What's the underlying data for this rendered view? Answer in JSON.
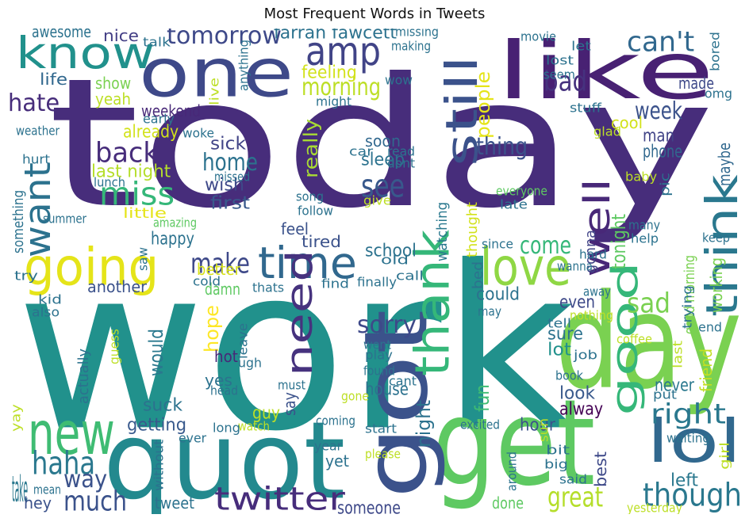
{
  "chart_data": {
    "type": "wordcloud",
    "title": "Most Frequent Words in Tweets",
    "colormap": "viridis",
    "words": [
      {
        "text": "today",
        "color": "#472d7b",
        "rot": false
      },
      {
        "text": "work",
        "color": "#21918c",
        "rot": false
      },
      {
        "text": "get",
        "color": "#5ec962",
        "rot": false
      },
      {
        "text": "got",
        "color": "#3b528b",
        "rot": true
      },
      {
        "text": "like",
        "color": "#482173",
        "rot": false
      },
      {
        "text": "day",
        "color": "#7ad151",
        "rot": false
      },
      {
        "text": "quot",
        "color": "#23898e",
        "rot": false
      },
      {
        "text": "one",
        "color": "#3e4989",
        "rot": false
      },
      {
        "text": "good",
        "color": "#35b779",
        "rot": true
      },
      {
        "text": "going",
        "color": "#e5e419",
        "rot": false
      },
      {
        "text": "know",
        "color": "#21918c",
        "rot": false
      },
      {
        "text": "think",
        "color": "#2a788e",
        "rot": true
      },
      {
        "text": "love",
        "color": "#8fd744",
        "rot": false
      },
      {
        "text": "thank",
        "color": "#35b779",
        "rot": true
      },
      {
        "text": "new",
        "color": "#3fbc73",
        "rot": false
      },
      {
        "text": "amp",
        "color": "#414487",
        "rot": false
      },
      {
        "text": "lol",
        "color": "#31688e",
        "rot": false
      },
      {
        "text": "well",
        "color": "#482878",
        "rot": true
      },
      {
        "text": "time",
        "color": "#31688e",
        "rot": false
      },
      {
        "text": "still",
        "color": "#3b528b",
        "rot": true
      },
      {
        "text": "want",
        "color": "#2c728e",
        "rot": true
      },
      {
        "text": "need",
        "color": "#46327e",
        "rot": true
      },
      {
        "text": "twitter",
        "color": "#472d7b",
        "rot": false
      },
      {
        "text": "miss",
        "color": "#35b779",
        "rot": false
      },
      {
        "text": "though",
        "color": "#2a788e",
        "rot": false
      },
      {
        "text": "haha",
        "color": "#2a788e",
        "rot": false
      },
      {
        "text": "see",
        "color": "#38598c",
        "rot": false
      },
      {
        "text": "much",
        "color": "#3b528b",
        "rot": false
      },
      {
        "text": "right",
        "color": "#2a788e",
        "rot": false
      },
      {
        "text": "great",
        "color": "#b5de2b",
        "rot": false
      },
      {
        "text": "back",
        "color": "#472d7b",
        "rot": false
      },
      {
        "text": "bad",
        "color": "#46327e",
        "rot": false
      },
      {
        "text": "can't",
        "color": "#31688e",
        "rot": false
      },
      {
        "text": "make",
        "color": "#3e4989",
        "rot": false
      },
      {
        "text": "way",
        "color": "#3b528b",
        "rot": false
      },
      {
        "text": "home",
        "color": "#2c728e",
        "rot": false
      },
      {
        "text": "morning",
        "color": "#bddf26",
        "rot": false
      },
      {
        "text": "tomorrow",
        "color": "#3e4989",
        "rot": false
      },
      {
        "text": "sad",
        "color": "#7ad151",
        "rot": false
      },
      {
        "text": "come",
        "color": "#35b779",
        "rot": false
      },
      {
        "text": "people",
        "color": "#e5e419",
        "rot": true
      },
      {
        "text": "week",
        "color": "#3b528b",
        "rot": false
      },
      {
        "text": "hate",
        "color": "#472d7b",
        "rot": false
      },
      {
        "text": "thing",
        "color": "#3b528b",
        "rot": false
      },
      {
        "text": "really",
        "color": "#a8db34",
        "rot": true
      },
      {
        "text": "tonight",
        "color": "#5ec962",
        "rot": true
      },
      {
        "text": "sorry",
        "color": "#3e4989",
        "rot": false
      },
      {
        "text": "hope",
        "color": "#fde725",
        "rot": true
      },
      {
        "text": "would",
        "color": "#2a788e",
        "rot": true
      },
      {
        "text": "night",
        "color": "#2c728e",
        "rot": true
      },
      {
        "text": "fun",
        "color": "#3fbc73",
        "rot": true
      },
      {
        "text": "sleep",
        "color": "#2c728e",
        "rot": false
      },
      {
        "text": "feeling",
        "color": "#d2e21b",
        "rot": false
      },
      {
        "text": "last night",
        "color": "#b5de2b",
        "rot": false
      },
      {
        "text": "already",
        "color": "#d2e21b",
        "rot": false
      },
      {
        "text": "happy",
        "color": "#2c728e",
        "rot": false
      },
      {
        "text": "lot",
        "color": "#21918c",
        "rot": false
      },
      {
        "text": "farrah fawcett",
        "color": "#2c728e",
        "rot": false
      },
      {
        "text": "awesome",
        "color": "#2c728e",
        "rot": false
      },
      {
        "text": "nice",
        "color": "#433e85",
        "rot": false
      },
      {
        "text": "school",
        "color": "#2c728e",
        "rot": false
      },
      {
        "text": "wish",
        "color": "#3e4989",
        "rot": false
      },
      {
        "text": "sick",
        "color": "#414487",
        "rot": false
      },
      {
        "text": "first",
        "color": "#38598c",
        "rot": false
      },
      {
        "text": "getting",
        "color": "#38598c",
        "rot": false
      },
      {
        "text": "suck",
        "color": "#2c728e",
        "rot": false
      },
      {
        "text": "house",
        "color": "#2c728e",
        "rot": false
      },
      {
        "text": "hour",
        "color": "#3b528b",
        "rot": false
      },
      {
        "text": "look",
        "color": "#38598c",
        "rot": false
      },
      {
        "text": "alway",
        "color": "#440154",
        "rot": false
      },
      {
        "text": "never",
        "color": "#2a788e",
        "rot": false
      },
      {
        "text": "left",
        "color": "#2a788e",
        "rot": false
      },
      {
        "text": "friend",
        "color": "#c2df23",
        "rot": true
      },
      {
        "text": "guy",
        "color": "#bddf26",
        "rot": false
      },
      {
        "text": "say",
        "color": "#3b528b",
        "rot": true
      },
      {
        "text": "take",
        "color": "#2a788e",
        "rot": false
      },
      {
        "text": "hey",
        "color": "#3b528b",
        "rot": false
      },
      {
        "text": "tweet",
        "color": "#2c728e",
        "rot": false
      },
      {
        "text": "someone",
        "color": "#3e4989",
        "rot": false
      },
      {
        "text": "done",
        "color": "#5ec962",
        "rot": false
      },
      {
        "text": "best",
        "color": "#3e4989",
        "rot": true
      },
      {
        "text": "could",
        "color": "#2c728e",
        "rot": false
      },
      {
        "text": "even",
        "color": "#3e4989",
        "rot": false
      },
      {
        "text": "sure",
        "color": "#2c728e",
        "rot": false
      },
      {
        "text": "cool",
        "color": "#d2e21b",
        "rot": false
      },
      {
        "text": "man",
        "color": "#414487",
        "rot": false
      },
      {
        "text": "phone",
        "color": "#31688e",
        "rot": false
      },
      {
        "text": "maybe",
        "color": "#31688e",
        "rot": true
      },
      {
        "text": "working",
        "color": "#7ad151",
        "rot": true
      },
      {
        "text": "made",
        "color": "#3e4989",
        "rot": false
      },
      {
        "text": "yeah",
        "color": "#bddf26",
        "rot": false
      },
      {
        "text": "show",
        "color": "#7ad151",
        "rot": false
      },
      {
        "text": "life",
        "color": "#31688e",
        "rot": false
      },
      {
        "text": "weekend",
        "color": "#482878",
        "rot": false
      },
      {
        "text": "soon",
        "color": "#31688e",
        "rot": false
      },
      {
        "text": "feel",
        "color": "#3b528b",
        "rot": false
      },
      {
        "text": "tired",
        "color": "#3b528b",
        "rot": false
      },
      {
        "text": "better",
        "color": "#d8e219",
        "rot": false
      },
      {
        "text": "another",
        "color": "#3b528b",
        "rot": false
      },
      {
        "text": "damn",
        "color": "#5ec962",
        "rot": false
      },
      {
        "text": "actually",
        "color": "#2c728e",
        "rot": true
      },
      {
        "text": "yes",
        "color": "#2c728e",
        "rot": false
      },
      {
        "text": "hot",
        "color": "#482878",
        "rot": false
      },
      {
        "text": "watching",
        "color": "#2a788e",
        "rot": true
      },
      {
        "text": "thought",
        "color": "#d2e21b",
        "rot": true
      },
      {
        "text": "good morning",
        "color": "#7ad151",
        "rot": true
      },
      {
        "text": "little",
        "color": "#e5e419",
        "rot": false
      },
      {
        "text": "something",
        "color": "#2c728e",
        "rot": true
      },
      {
        "text": "gonna",
        "color": "#414487",
        "rot": true
      },
      {
        "text": "bed",
        "color": "#2c728e",
        "rot": true
      },
      {
        "text": "missing",
        "color": "#2c728e",
        "rot": false
      },
      {
        "text": "making",
        "color": "#2c728e",
        "rot": false
      },
      {
        "text": "movie",
        "color": "#2c728e",
        "rot": false
      },
      {
        "text": "let",
        "color": "#2c728e",
        "rot": false
      },
      {
        "text": "lost",
        "color": "#2c728e",
        "rot": false
      },
      {
        "text": "seem",
        "color": "#2c728e",
        "rot": false
      },
      {
        "text": "bored",
        "color": "#2c728e",
        "rot": true
      },
      {
        "text": "wow",
        "color": "#2c728e",
        "rot": false
      },
      {
        "text": "omg",
        "color": "#2c728e",
        "rot": false
      },
      {
        "text": "might",
        "color": "#2c728e",
        "rot": false
      },
      {
        "text": "stuff",
        "color": "#2c728e",
        "rot": false
      },
      {
        "text": "glad",
        "color": "#bddf26",
        "rot": false
      },
      {
        "text": "weather",
        "color": "#2c728e",
        "rot": false
      },
      {
        "text": "early",
        "color": "#2c728e",
        "rot": false
      },
      {
        "text": "woke",
        "color": "#2c728e",
        "rot": false
      },
      {
        "text": "hurt",
        "color": "#2c728e",
        "rot": false
      },
      {
        "text": "lunch",
        "color": "#2c728e",
        "rot": false
      },
      {
        "text": "missed",
        "color": "#2c728e",
        "rot": false
      },
      {
        "text": "car",
        "color": "#2c728e",
        "rot": false
      },
      {
        "text": "read",
        "color": "#2c728e",
        "rot": false
      },
      {
        "text": "dont",
        "color": "#2c728e",
        "rot": false
      },
      {
        "text": "baby",
        "color": "#bddf26",
        "rot": false
      },
      {
        "text": "song",
        "color": "#2c728e",
        "rot": false
      },
      {
        "text": "give",
        "color": "#bddf26",
        "rot": false
      },
      {
        "text": "follow",
        "color": "#2c728e",
        "rot": false
      },
      {
        "text": "everyone",
        "color": "#5ec962",
        "rot": false
      },
      {
        "text": "late",
        "color": "#2c728e",
        "rot": false
      },
      {
        "text": "pic",
        "color": "#2c728e",
        "rot": true
      },
      {
        "text": "many",
        "color": "#2c728e",
        "rot": false
      },
      {
        "text": "help",
        "color": "#2c728e",
        "rot": false
      },
      {
        "text": "keep",
        "color": "#2c728e",
        "rot": false
      },
      {
        "text": "summer",
        "color": "#2c728e",
        "rot": false
      },
      {
        "text": "amazing",
        "color": "#5ec962",
        "rot": false
      },
      {
        "text": "anything",
        "color": "#2c728e",
        "rot": true
      },
      {
        "text": "live",
        "color": "#bddf26",
        "rot": true
      },
      {
        "text": "saw",
        "color": "#2c728e",
        "rot": true
      },
      {
        "text": "wanna",
        "color": "#2c728e",
        "rot": false
      },
      {
        "text": "since",
        "color": "#2c728e",
        "rot": false
      },
      {
        "text": "hard",
        "color": "#2c728e",
        "rot": false
      },
      {
        "text": "away",
        "color": "#2c728e",
        "rot": false
      },
      {
        "text": "old",
        "color": "#2c728e",
        "rot": false
      },
      {
        "text": "call",
        "color": "#2c728e",
        "rot": false
      },
      {
        "text": "find",
        "color": "#2c728e",
        "rot": false
      },
      {
        "text": "finally",
        "color": "#2c728e",
        "rot": false
      },
      {
        "text": "cold",
        "color": "#2c728e",
        "rot": false
      },
      {
        "text": "thats",
        "color": "#2c728e",
        "rot": false
      },
      {
        "text": "try",
        "color": "#2c728e",
        "rot": false
      },
      {
        "text": "kid",
        "color": "#2c728e",
        "rot": false
      },
      {
        "text": "also",
        "color": "#2c728e",
        "rot": false
      },
      {
        "text": "guess",
        "color": "#bddf26",
        "rot": true
      },
      {
        "text": "leave",
        "color": "#2c728e",
        "rot": true
      },
      {
        "text": "ugh",
        "color": "#2c728e",
        "rot": false
      },
      {
        "text": "head",
        "color": "#2c728e",
        "rot": false
      },
      {
        "text": "must",
        "color": "#2c728e",
        "rot": false
      },
      {
        "text": "went",
        "color": "#2c728e",
        "rot": false
      },
      {
        "text": "play",
        "color": "#2c728e",
        "rot": false
      },
      {
        "text": "found",
        "color": "#2c728e",
        "rot": false
      },
      {
        "text": "cant",
        "color": "#2c728e",
        "rot": false
      },
      {
        "text": "gone",
        "color": "#bddf26",
        "rot": false
      },
      {
        "text": "nothing",
        "color": "#bddf26",
        "rot": false
      },
      {
        "text": "tell",
        "color": "#2c728e",
        "rot": false
      },
      {
        "text": "may",
        "color": "#2c728e",
        "rot": false
      },
      {
        "text": "job",
        "color": "#2c728e",
        "rot": false
      },
      {
        "text": "coffee",
        "color": "#bddf26",
        "rot": false
      },
      {
        "text": "last",
        "color": "#bddf26",
        "rot": true
      },
      {
        "text": "end",
        "color": "#2c728e",
        "rot": false
      },
      {
        "text": "trying",
        "color": "#2c728e",
        "rot": true
      },
      {
        "text": "book",
        "color": "#2c728e",
        "rot": false
      },
      {
        "text": "put",
        "color": "#2c728e",
        "rot": false
      },
      {
        "text": "sun",
        "color": "#bddf26",
        "rot": true
      },
      {
        "text": "waiting",
        "color": "#2c728e",
        "rot": false
      },
      {
        "text": "girl",
        "color": "#bddf26",
        "rot": true
      },
      {
        "text": "bit",
        "color": "#2c728e",
        "rot": false
      },
      {
        "text": "big",
        "color": "#2c728e",
        "rot": false
      },
      {
        "text": "said",
        "color": "#2c728e",
        "rot": false
      },
      {
        "text": "around",
        "color": "#2c728e",
        "rot": true
      },
      {
        "text": "excited",
        "color": "#2c728e",
        "rot": false
      },
      {
        "text": "coming",
        "color": "#2c728e",
        "rot": false
      },
      {
        "text": "start",
        "color": "#2c728e",
        "rot": false
      },
      {
        "text": "long",
        "color": "#2c728e",
        "rot": false
      },
      {
        "text": "watch",
        "color": "#bddf26",
        "rot": false
      },
      {
        "text": "year",
        "color": "#2c728e",
        "rot": false
      },
      {
        "text": "please",
        "color": "#bddf26",
        "rot": false
      },
      {
        "text": "ever",
        "color": "#2c728e",
        "rot": false
      },
      {
        "text": "without",
        "color": "#2c728e",
        "rot": true
      },
      {
        "text": "yay",
        "color": "#bddf26",
        "rot": true
      },
      {
        "text": "mean",
        "color": "#2c728e",
        "rot": false
      },
      {
        "text": "talk",
        "color": "#2c728e",
        "rot": false
      },
      {
        "text": "yet",
        "color": "#2c728e",
        "rot": false
      },
      {
        "text": "yesterday",
        "color": "#bddf26",
        "rot": false
      }
    ]
  }
}
